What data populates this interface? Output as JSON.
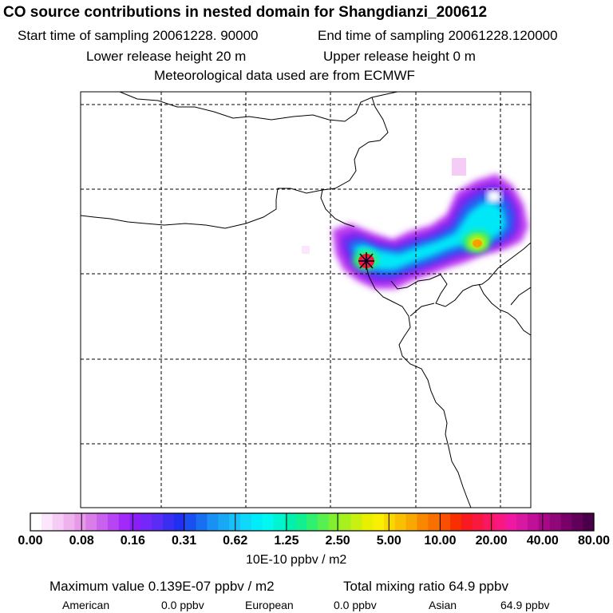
{
  "header": {
    "title": "CO  source contributions in nested domain for Shangdianzi_200612",
    "start": "Start time of sampling 20061228. 90000",
    "end": "End time of sampling 20061228.120000",
    "lower": "Lower release height   20 m",
    "upper": "Upper release height    0 m",
    "met": "Meteorological data used are from ECMWF"
  },
  "colorbar": {
    "tick_labels": [
      "0.00",
      "0.08",
      "0.16",
      "0.31",
      "0.62",
      "1.25",
      "2.50",
      "5.00",
      "10.00",
      "20.00",
      "40.00",
      "80.00"
    ],
    "unit": "10E-10 ppbv / m2",
    "colors": [
      "#ffffff",
      "#fbe6fb",
      "#f5ccf5",
      "#eeb2ee",
      "#e898e8",
      "#d97ee8",
      "#c862ee",
      "#b845f4",
      "#a22af8",
      "#8a1ef8",
      "#7328f8",
      "#5a2cf4",
      "#3a2ef0",
      "#2030f0",
      "#1a50f0",
      "#1870f0",
      "#1890f4",
      "#18a8f4",
      "#18c0f8",
      "#10d8f8",
      "#00ecf8",
      "#00f8f0",
      "#00f4d0",
      "#00f0b0",
      "#10f090",
      "#30f070",
      "#58f050",
      "#80f030",
      "#a8f020",
      "#c8f010",
      "#e8f000",
      "#f8f000",
      "#f8d800",
      "#f8c000",
      "#f8a800",
      "#f88800",
      "#f87000",
      "#f85000",
      "#f83000",
      "#f81a20",
      "#f81840",
      "#f81860",
      "#f81880",
      "#f018a0",
      "#d818a0",
      "#c01098",
      "#a80888",
      "#900878",
      "#780068",
      "#600058",
      "#4a0048"
    ]
  },
  "footer": {
    "max_value": "Maximum value  0.139E-07 ppbv / m2",
    "total": "Total mixing ratio       64.9 ppbv",
    "american_label": "American",
    "american_value": "0.0 ppbv",
    "european_label": "European",
    "european_value": "0.0 ppbv",
    "asian_label": "Asian",
    "asian_value": "64.9 ppbv"
  },
  "plume_levels": {
    "light_pink": "#f0c8f0",
    "violet": "#c040f0",
    "purple": "#8020f0",
    "blue": "#2060f0",
    "cyan": "#00e8f8",
    "green": "#30f070",
    "yellow": "#d8f000",
    "orange": "#f8a000",
    "red": "#f81830",
    "magenta": "#e01890"
  }
}
